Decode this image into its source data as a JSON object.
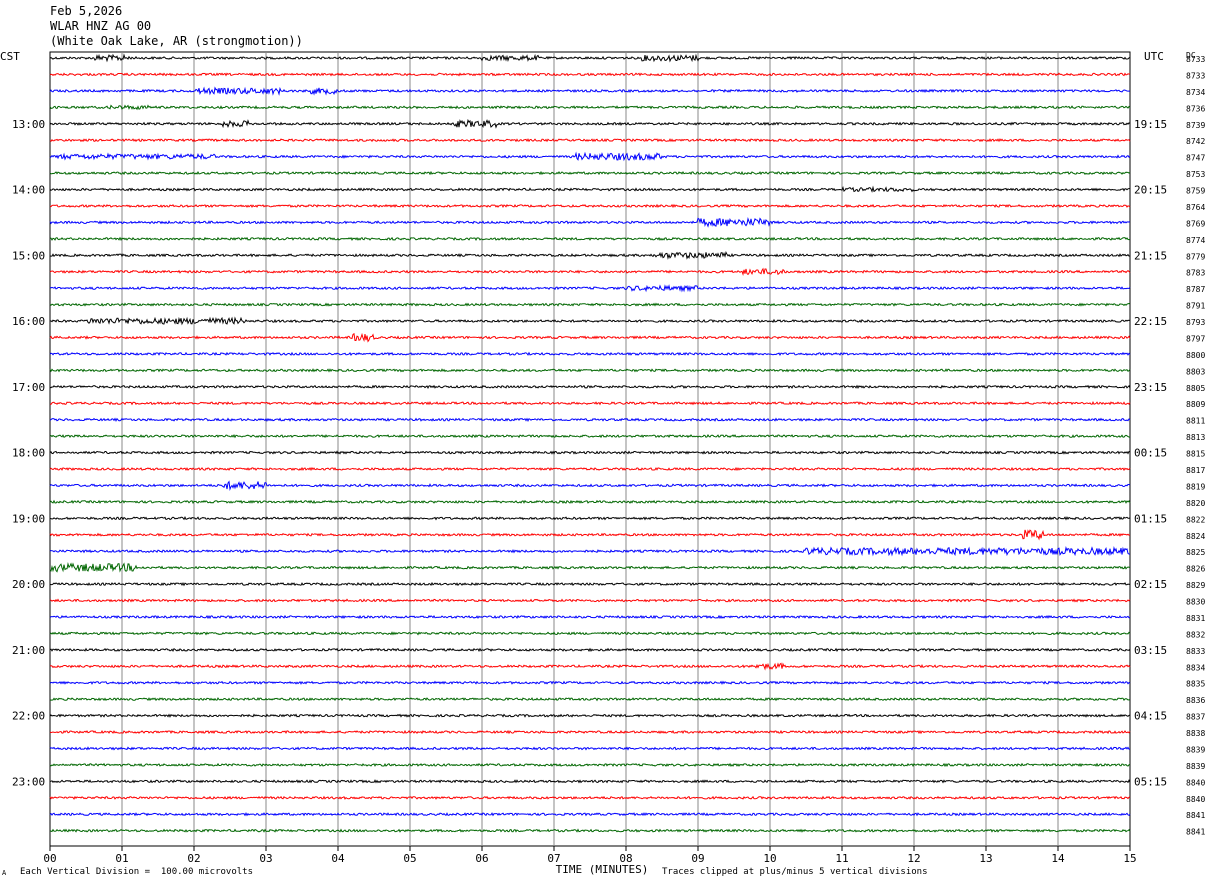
{
  "header": {
    "date": "Feb 5,2026",
    "station": "WLAR HNZ AG 00",
    "location": "(White Oak Lake, AR (strongmotion))"
  },
  "left_tz": "CST",
  "right_tz": "UTC",
  "dc_label": "DC",
  "footer": {
    "scale": "Each Vertical Division =  100.00 microvolts",
    "clip": "Traces clipped at plus/minus 5 vertical divisions",
    "corner": "A"
  },
  "chart_data": {
    "type": "line",
    "xlabel": "TIME (MINUTES)",
    "x_ticks": [
      "00",
      "01",
      "02",
      "03",
      "04",
      "05",
      "06",
      "07",
      "08",
      "09",
      "10",
      "11",
      "12",
      "13",
      "14",
      "15"
    ],
    "xlim": [
      0,
      15
    ],
    "grid": true,
    "trace_colors": [
      "#000000",
      "#ff0000",
      "#0000ff",
      "#006600"
    ],
    "left_hour_labels": [
      {
        "trace": 4,
        "label": "13:00"
      },
      {
        "trace": 8,
        "label": "14:00"
      },
      {
        "trace": 12,
        "label": "15:00"
      },
      {
        "trace": 16,
        "label": "16:00"
      },
      {
        "trace": 20,
        "label": "17:00"
      },
      {
        "trace": 24,
        "label": "18:00"
      },
      {
        "trace": 28,
        "label": "19:00"
      },
      {
        "trace": 32,
        "label": "20:00"
      },
      {
        "trace": 36,
        "label": "21:00"
      },
      {
        "trace": 40,
        "label": "22:00"
      },
      {
        "trace": 44,
        "label": "23:00"
      }
    ],
    "right_hour_labels": [
      {
        "trace": 4,
        "label": "19:15"
      },
      {
        "trace": 8,
        "label": "20:15"
      },
      {
        "trace": 12,
        "label": "21:15"
      },
      {
        "trace": 16,
        "label": "22:15"
      },
      {
        "trace": 20,
        "label": "23:15"
      },
      {
        "trace": 24,
        "label": "00:15"
      },
      {
        "trace": 28,
        "label": "01:15"
      },
      {
        "trace": 32,
        "label": "02:15"
      },
      {
        "trace": 36,
        "label": "03:15"
      },
      {
        "trace": 40,
        "label": "04:15"
      },
      {
        "trace": 44,
        "label": "05:15"
      }
    ],
    "dc_offsets": [
      "8733",
      "8733",
      "8734",
      "8736",
      "8739",
      "8742",
      "8747",
      "8753",
      "8759",
      "8764",
      "8769",
      "8774",
      "8779",
      "8783",
      "8787",
      "8791",
      "8793",
      "8797",
      "8800",
      "8803",
      "8805",
      "8809",
      "8811",
      "8813",
      "8815",
      "8817",
      "8819",
      "8820",
      "8822",
      "8824",
      "8825",
      "8826",
      "8829",
      "8830",
      "8831",
      "8832",
      "8833",
      "8834",
      "8835",
      "8836",
      "8837",
      "8838",
      "8839",
      "8839",
      "8840",
      "8840",
      "8841",
      "8841"
    ],
    "trace_count": 48
  }
}
